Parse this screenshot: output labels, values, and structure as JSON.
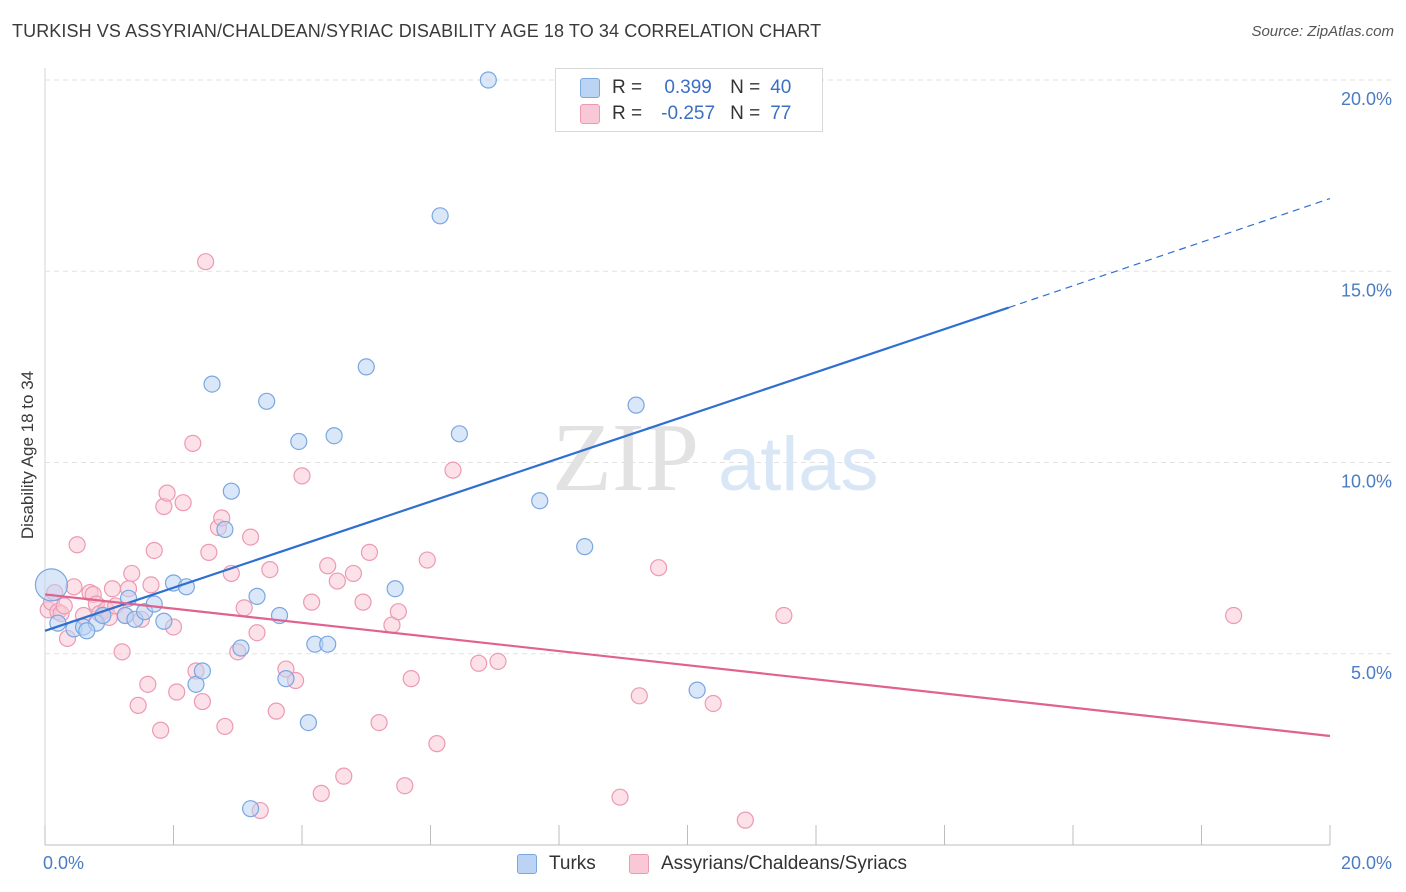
{
  "header": {
    "title": "TURKISH VS ASSYRIAN/CHALDEAN/SYRIAC DISABILITY AGE 18 TO 34 CORRELATION CHART",
    "source": "Source: ZipAtlas.com"
  },
  "legend": {
    "turks": {
      "r_label": "R =",
      "r_value": "0.399",
      "n_label": "N =",
      "n_value": "40"
    },
    "assyrians": {
      "r_label": "R =",
      "r_value": "-0.257",
      "n_label": "N =",
      "n_value": "77"
    }
  },
  "bottom_legend": {
    "turks": "Turks",
    "assyrians": "Assyrians/Chaldeans/Syriacs"
  },
  "watermark": {
    "zip": "ZIP",
    "atlas": "atlas"
  },
  "colors": {
    "turks_fill": "#bcd4f4",
    "turks_stroke": "#7aa7e0",
    "turks_line": "#2f6fd0",
    "assyrians_fill": "#f9c8d6",
    "assyrians_stroke": "#ec9ab3",
    "assyrians_line": "#e0628e",
    "tick_text": "#4a7cc4",
    "grid": "#e2e2e2"
  },
  "chart_data": {
    "type": "scatter",
    "title": "TURKISH VS ASSYRIAN/CHALDEAN/SYRIAC DISABILITY AGE 18 TO 34 CORRELATION CHART",
    "xlabel": "",
    "ylabel": "Disability Age 18 to 34",
    "xlim": [
      0,
      20
    ],
    "ylim": [
      0,
      20
    ],
    "x_tick_labels": [
      "0.0%",
      "20.0%"
    ],
    "y_ticks": [
      5,
      10,
      15,
      20
    ],
    "y_tick_labels": [
      "5.0%",
      "10.0%",
      "15.0%",
      "20.0%"
    ],
    "grid": true,
    "legend_position": "top-center",
    "series": [
      {
        "name": "Turks",
        "r": 0.399,
        "n": 40,
        "trend": {
          "x0": 0.0,
          "y0": 5.6,
          "x1": 15.0,
          "y1": 14.05,
          "dashed_to_x": 20.0,
          "dashed_to_y": 16.9
        },
        "points": [
          {
            "x": 0.1,
            "y": 6.8,
            "big": true
          },
          {
            "x": 0.2,
            "y": 5.8
          },
          {
            "x": 0.45,
            "y": 5.65
          },
          {
            "x": 0.6,
            "y": 5.7
          },
          {
            "x": 0.8,
            "y": 5.8
          },
          {
            "x": 0.9,
            "y": 6.0
          },
          {
            "x": 1.25,
            "y": 6.0
          },
          {
            "x": 1.3,
            "y": 6.45
          },
          {
            "x": 1.4,
            "y": 5.9
          },
          {
            "x": 1.55,
            "y": 6.1
          },
          {
            "x": 1.7,
            "y": 6.3
          },
          {
            "x": 1.85,
            "y": 5.85
          },
          {
            "x": 2.0,
            "y": 6.85
          },
          {
            "x": 2.2,
            "y": 6.75
          },
          {
            "x": 2.35,
            "y": 4.2
          },
          {
            "x": 2.45,
            "y": 4.55
          },
          {
            "x": 2.6,
            "y": 12.05
          },
          {
            "x": 2.8,
            "y": 8.25
          },
          {
            "x": 2.9,
            "y": 9.25
          },
          {
            "x": 3.05,
            "y": 5.15
          },
          {
            "x": 3.2,
            "y": 0.95
          },
          {
            "x": 3.3,
            "y": 6.5
          },
          {
            "x": 3.45,
            "y": 11.6
          },
          {
            "x": 3.65,
            "y": 6.0
          },
          {
            "x": 3.75,
            "y": 4.35
          },
          {
            "x": 3.95,
            "y": 10.55
          },
          {
            "x": 4.1,
            "y": 3.2
          },
          {
            "x": 4.2,
            "y": 5.25
          },
          {
            "x": 4.4,
            "y": 5.25
          },
          {
            "x": 4.5,
            "y": 10.7
          },
          {
            "x": 5.0,
            "y": 12.5
          },
          {
            "x": 5.45,
            "y": 6.7
          },
          {
            "x": 6.15,
            "y": 16.45
          },
          {
            "x": 6.45,
            "y": 10.75
          },
          {
            "x": 6.9,
            "y": 20.0
          },
          {
            "x": 7.7,
            "y": 9.0
          },
          {
            "x": 8.4,
            "y": 7.8
          },
          {
            "x": 9.2,
            "y": 11.5
          },
          {
            "x": 10.15,
            "y": 4.05
          },
          {
            "x": 0.65,
            "y": 5.6
          }
        ]
      },
      {
        "name": "Assyrians/Chaldeans/Syriacs",
        "r": -0.257,
        "n": 77,
        "trend": {
          "x0": 0.0,
          "y0": 6.55,
          "x1": 20.0,
          "y1": 2.85
        },
        "points": [
          {
            "x": 0.05,
            "y": 6.15
          },
          {
            "x": 0.1,
            "y": 6.35
          },
          {
            "x": 0.15,
            "y": 6.6
          },
          {
            "x": 0.2,
            "y": 6.1
          },
          {
            "x": 0.25,
            "y": 6.05
          },
          {
            "x": 0.3,
            "y": 6.25
          },
          {
            "x": 0.35,
            "y": 5.4
          },
          {
            "x": 0.45,
            "y": 6.75
          },
          {
            "x": 0.5,
            "y": 7.85
          },
          {
            "x": 0.6,
            "y": 6.0
          },
          {
            "x": 0.7,
            "y": 6.6
          },
          {
            "x": 0.75,
            "y": 6.55
          },
          {
            "x": 0.8,
            "y": 6.3
          },
          {
            "x": 0.85,
            "y": 6.05
          },
          {
            "x": 0.95,
            "y": 6.15
          },
          {
            "x": 1.0,
            "y": 5.95
          },
          {
            "x": 1.05,
            "y": 6.7
          },
          {
            "x": 1.1,
            "y": 6.25
          },
          {
            "x": 1.2,
            "y": 5.05
          },
          {
            "x": 1.25,
            "y": 6.0
          },
          {
            "x": 1.3,
            "y": 6.7
          },
          {
            "x": 1.35,
            "y": 7.1
          },
          {
            "x": 1.45,
            "y": 3.65
          },
          {
            "x": 1.5,
            "y": 5.9
          },
          {
            "x": 1.6,
            "y": 4.2
          },
          {
            "x": 1.65,
            "y": 6.8
          },
          {
            "x": 1.7,
            "y": 7.7
          },
          {
            "x": 1.8,
            "y": 3.0
          },
          {
            "x": 1.85,
            "y": 8.85
          },
          {
            "x": 1.9,
            "y": 9.2
          },
          {
            "x": 2.0,
            "y": 5.7
          },
          {
            "x": 2.05,
            "y": 4.0
          },
          {
            "x": 2.15,
            "y": 8.95
          },
          {
            "x": 2.3,
            "y": 10.5
          },
          {
            "x": 2.35,
            "y": 4.55
          },
          {
            "x": 2.45,
            "y": 3.75
          },
          {
            "x": 2.5,
            "y": 15.25
          },
          {
            "x": 2.55,
            "y": 7.65
          },
          {
            "x": 2.7,
            "y": 8.3
          },
          {
            "x": 2.75,
            "y": 8.55
          },
          {
            "x": 2.8,
            "y": 3.1
          },
          {
            "x": 2.9,
            "y": 7.1
          },
          {
            "x": 3.0,
            "y": 5.05
          },
          {
            "x": 3.1,
            "y": 6.2
          },
          {
            "x": 3.2,
            "y": 8.05
          },
          {
            "x": 3.3,
            "y": 5.55
          },
          {
            "x": 3.35,
            "y": 0.9
          },
          {
            "x": 3.5,
            "y": 7.2
          },
          {
            "x": 3.6,
            "y": 3.5
          },
          {
            "x": 3.75,
            "y": 4.6
          },
          {
            "x": 3.9,
            "y": 4.3
          },
          {
            "x": 4.0,
            "y": 9.65
          },
          {
            "x": 4.15,
            "y": 6.35
          },
          {
            "x": 4.3,
            "y": 1.35
          },
          {
            "x": 4.4,
            "y": 7.3
          },
          {
            "x": 4.55,
            "y": 6.9
          },
          {
            "x": 4.65,
            "y": 1.8
          },
          {
            "x": 4.8,
            "y": 7.1
          },
          {
            "x": 4.95,
            "y": 6.35
          },
          {
            "x": 5.05,
            "y": 7.65
          },
          {
            "x": 5.2,
            "y": 3.2
          },
          {
            "x": 5.4,
            "y": 5.75
          },
          {
            "x": 5.5,
            "y": 6.1
          },
          {
            "x": 5.6,
            "y": 1.55
          },
          {
            "x": 5.7,
            "y": 4.35
          },
          {
            "x": 5.95,
            "y": 7.45
          },
          {
            "x": 6.1,
            "y": 2.65
          },
          {
            "x": 6.35,
            "y": 9.8
          },
          {
            "x": 6.75,
            "y": 4.75
          },
          {
            "x": 7.05,
            "y": 4.8
          },
          {
            "x": 8.95,
            "y": 1.25
          },
          {
            "x": 9.25,
            "y": 3.9
          },
          {
            "x": 9.55,
            "y": 7.25
          },
          {
            "x": 10.4,
            "y": 3.7
          },
          {
            "x": 10.9,
            "y": 0.65
          },
          {
            "x": 11.5,
            "y": 6.0
          },
          {
            "x": 18.5,
            "y": 6.0
          }
        ]
      }
    ]
  }
}
